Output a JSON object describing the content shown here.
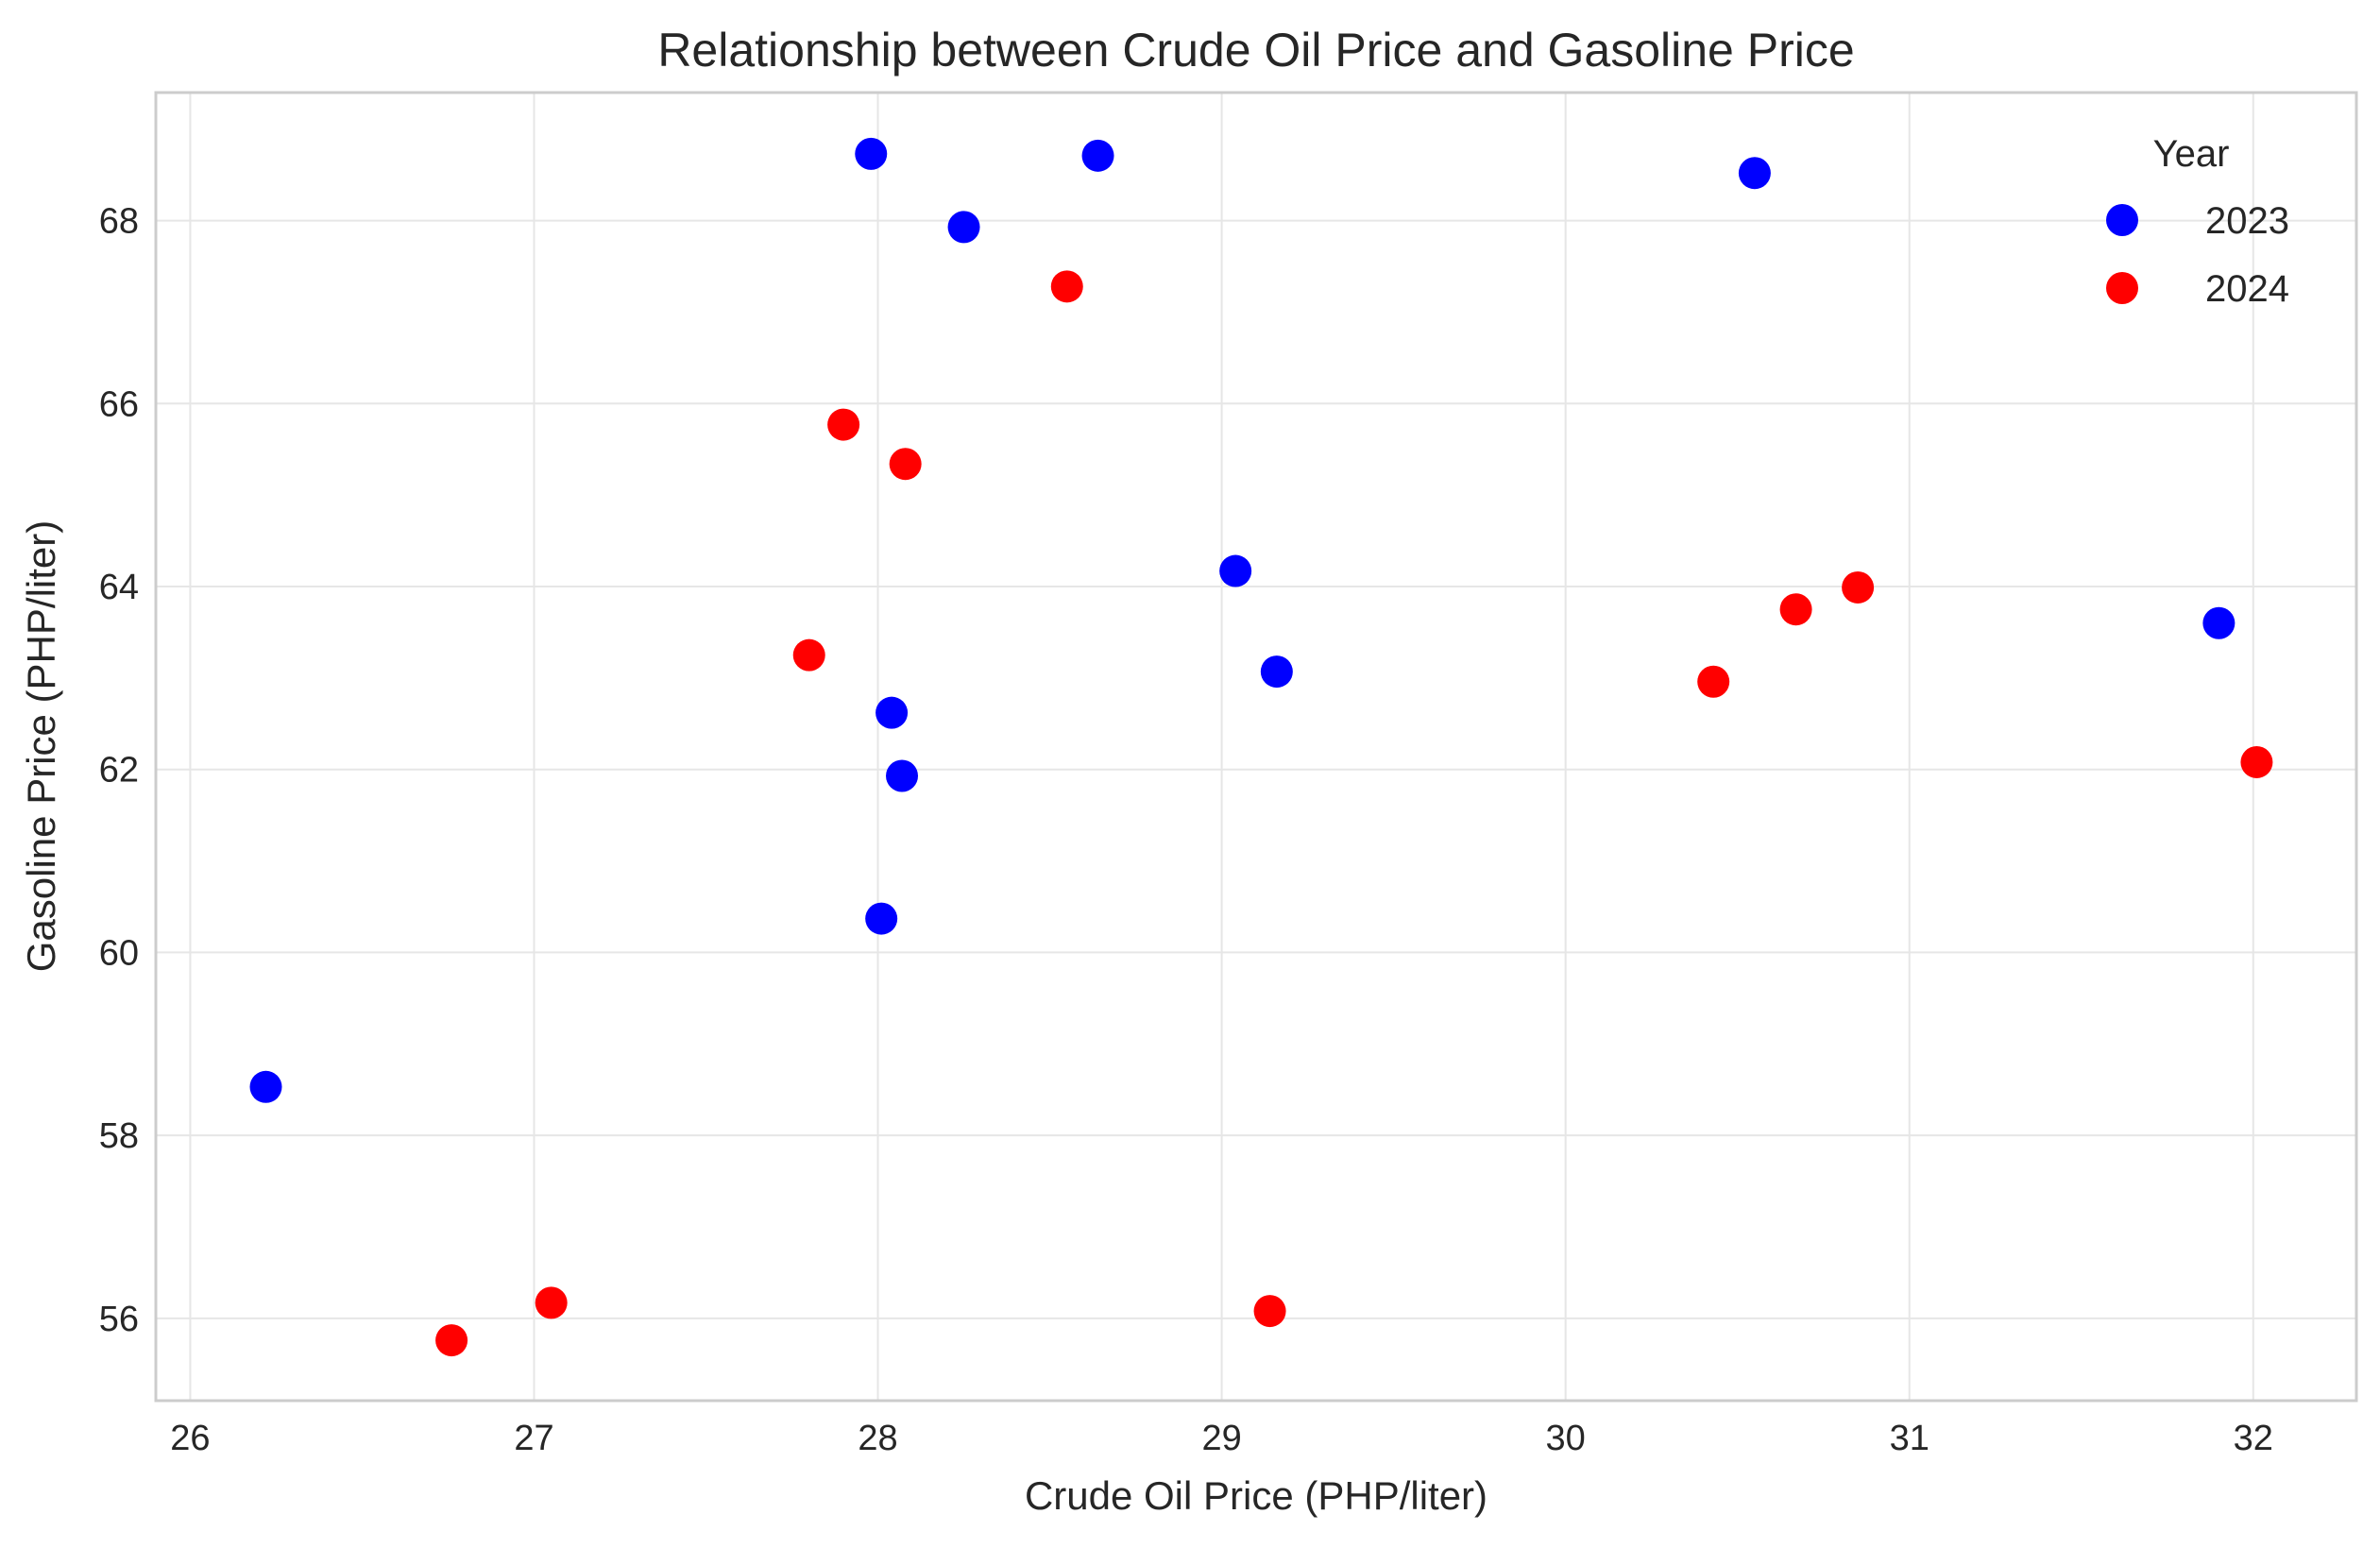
{
  "chart_data": {
    "type": "scatter",
    "title": "Relationship between Crude Oil Price and Gasoline Price",
    "xlabel": "Crude Oil Price (PHP/liter)",
    "ylabel": "Gasoline Price (PHP/liter)",
    "xlim": [
      25.9,
      32.3
    ],
    "ylim": [
      55.1,
      69.4
    ],
    "xticks": [
      26,
      27,
      28,
      29,
      30,
      31,
      32
    ],
    "yticks": [
      56,
      58,
      60,
      62,
      64,
      66,
      68
    ],
    "grid": true,
    "legend": {
      "title": "Year",
      "position": "top-right"
    },
    "series": [
      {
        "name": "2023",
        "color": "#0000ff",
        "points": [
          {
            "x": 27.98,
            "y": 68.73
          },
          {
            "x": 28.64,
            "y": 68.71
          },
          {
            "x": 28.25,
            "y": 67.93
          },
          {
            "x": 30.55,
            "y": 68.52
          },
          {
            "x": 29.04,
            "y": 64.17
          },
          {
            "x": 29.16,
            "y": 63.07
          },
          {
            "x": 31.9,
            "y": 63.6
          },
          {
            "x": 28.04,
            "y": 62.62
          },
          {
            "x": 28.07,
            "y": 61.93
          },
          {
            "x": 28.01,
            "y": 60.37
          },
          {
            "x": 26.22,
            "y": 58.53
          }
        ]
      },
      {
        "name": "2024",
        "color": "#ff0000",
        "points": [
          {
            "x": 28.55,
            "y": 67.28
          },
          {
            "x": 27.9,
            "y": 65.77
          },
          {
            "x": 28.08,
            "y": 65.34
          },
          {
            "x": 27.8,
            "y": 63.25
          },
          {
            "x": 30.43,
            "y": 62.96
          },
          {
            "x": 30.67,
            "y": 63.75
          },
          {
            "x": 30.85,
            "y": 63.99
          },
          {
            "x": 32.01,
            "y": 62.08
          },
          {
            "x": 26.76,
            "y": 55.76
          },
          {
            "x": 27.05,
            "y": 56.17
          },
          {
            "x": 29.14,
            "y": 56.08
          }
        ]
      }
    ]
  }
}
